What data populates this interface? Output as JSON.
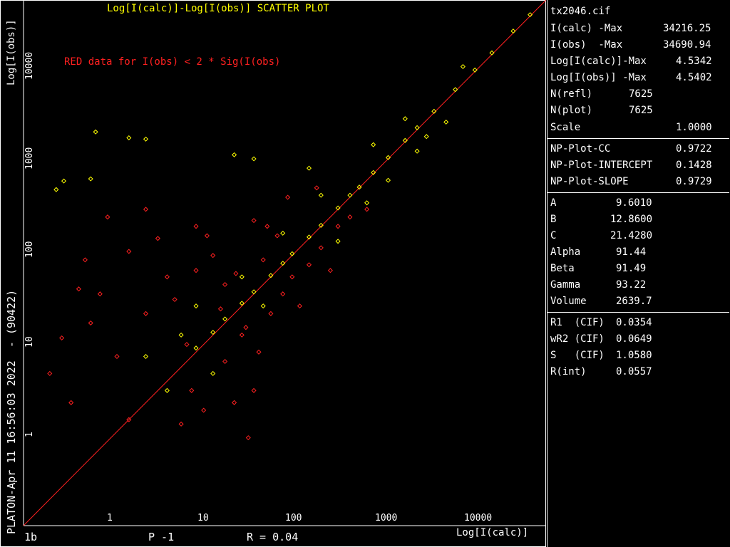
{
  "chart_data": {
    "type": "scatter",
    "title": "Log[I(calc)]-Log[I(obs)] SCATTER PLOT",
    "xlabel": "Log[I(calc)]",
    "ylabel": "Log[I(obs)]",
    "x_scale": "log",
    "y_scale": "log",
    "xlim": [
      0.16,
      44000
    ],
    "ylim": [
      0.16,
      44000
    ],
    "x_ticks": [
      "1",
      "10",
      "100",
      "1000",
      "10000"
    ],
    "y_ticks": [
      "1",
      "10",
      "100",
      "1000",
      "10000"
    ],
    "annotation": "RED data for I(obs) < 2 * Sig(I(obs)",
    "grid": false,
    "colors": {
      "strong": "#ffff00",
      "weak": "#ff2020",
      "line": "#ff2020"
    },
    "series": [
      {
        "color": "#ffff00",
        "points": [
          [
            0.35,
            480
          ],
          [
            0.42,
            590
          ],
          [
            0.9,
            1900
          ],
          [
            2.0,
            1650
          ],
          [
            3.0,
            1600
          ],
          [
            0.8,
            620
          ],
          [
            30000,
            31000
          ],
          [
            20000,
            21000
          ],
          [
            12000,
            12500
          ],
          [
            8000,
            8300
          ],
          [
            5000,
            5200
          ],
          [
            3000,
            3100
          ],
          [
            2000,
            2100
          ],
          [
            1500,
            1550
          ],
          [
            1000,
            1030
          ],
          [
            700,
            720
          ],
          [
            500,
            510
          ],
          [
            400,
            420
          ],
          [
            300,
            310
          ],
          [
            200,
            205
          ],
          [
            150,
            155
          ],
          [
            100,
            104
          ],
          [
            80,
            83
          ],
          [
            60,
            62
          ],
          [
            40,
            42
          ],
          [
            30,
            32
          ],
          [
            20,
            22
          ],
          [
            15,
            16
          ],
          [
            10,
            11
          ],
          [
            2000,
            1200
          ],
          [
            1000,
            600
          ],
          [
            600,
            350
          ],
          [
            1500,
            2600
          ],
          [
            2500,
            1700
          ],
          [
            700,
            1400
          ],
          [
            200,
            420
          ],
          [
            80,
            170
          ],
          [
            50,
            30
          ],
          [
            30,
            60
          ],
          [
            300,
            140
          ],
          [
            4000,
            2400
          ],
          [
            6000,
            9000
          ],
          [
            10,
            30
          ],
          [
            7,
            15
          ],
          [
            15,
            6
          ],
          [
            3,
            9
          ],
          [
            5,
            4
          ],
          [
            40,
            1000
          ],
          [
            25,
            1100
          ],
          [
            150,
            800
          ]
        ]
      },
      {
        "color": "#ff2020",
        "points": [
          [
            0.3,
            6
          ],
          [
            0.4,
            14
          ],
          [
            0.5,
            3
          ],
          [
            0.8,
            20
          ],
          [
            1.0,
            40
          ],
          [
            0.6,
            45
          ],
          [
            1.5,
            9
          ],
          [
            2,
            2
          ],
          [
            3,
            25
          ],
          [
            5,
            60
          ],
          [
            8,
            12
          ],
          [
            10,
            200
          ],
          [
            12,
            2.5
          ],
          [
            20,
            8
          ],
          [
            30,
            15
          ],
          [
            40,
            4
          ],
          [
            50,
            90
          ],
          [
            60,
            25
          ],
          [
            80,
            40
          ],
          [
            100,
            60
          ],
          [
            150,
            80
          ],
          [
            200,
            120
          ],
          [
            300,
            200
          ],
          [
            400,
            250
          ],
          [
            20,
            50
          ],
          [
            15,
            100
          ],
          [
            10,
            70
          ],
          [
            6,
            35
          ],
          [
            25,
            3
          ],
          [
            35,
            1.3
          ],
          [
            18,
            28
          ],
          [
            45,
            10
          ],
          [
            70,
            160
          ],
          [
            120,
            30
          ],
          [
            9,
            4
          ],
          [
            4,
            150
          ],
          [
            3,
            300
          ],
          [
            1.2,
            250
          ],
          [
            0.7,
            90
          ],
          [
            55,
            200
          ],
          [
            90,
            400
          ],
          [
            180,
            500
          ],
          [
            250,
            70
          ],
          [
            600,
            300
          ],
          [
            2,
            110
          ],
          [
            40,
            230
          ],
          [
            7,
            1.8
          ],
          [
            13,
            160
          ],
          [
            26,
            65
          ],
          [
            33,
            18
          ]
        ]
      }
    ],
    "reference_line": {
      "from": [
        0.16,
        0.16
      ],
      "to": [
        44000,
        44000
      ]
    }
  },
  "labels": {
    "vertical_stamp": "PLATON-Apr 11 16:56:03 2022  - (90422)",
    "bottom_left": "1b",
    "bottom_p": "P -1",
    "bottom_r": "R = 0.04"
  },
  "info": {
    "filename": "tx2046.cif",
    "rows_1": [
      {
        "k": "I(calc) -Max",
        "v": "34216.25"
      },
      {
        "k": "I(obs)  -Max",
        "v": "34690.94"
      },
      {
        "k": "Log[I(calc)]-Max",
        "v": "4.5342"
      },
      {
        "k": "Log[I(obs)] -Max",
        "v": "4.5402"
      },
      {
        "k": "N(refl)",
        "v": "7625"
      },
      {
        "k": "N(plot)",
        "v": "7625"
      },
      {
        "k": "Scale",
        "v": "1.0000"
      }
    ],
    "rows_2": [
      {
        "k": "NP-Plot-CC",
        "v": "0.9722"
      },
      {
        "k": "NP-Plot-INTERCEPT",
        "v": "0.1428"
      },
      {
        "k": "NP-Plot-SLOPE",
        "v": "0.9729"
      }
    ],
    "rows_3": [
      {
        "k": "A",
        "v": "9.6010"
      },
      {
        "k": "B",
        "v": "12.8600"
      },
      {
        "k": "C",
        "v": "21.4280"
      },
      {
        "k": "Alpha",
        "v": "91.44"
      },
      {
        "k": "Beta",
        "v": "91.49"
      },
      {
        "k": "Gamma",
        "v": "93.22"
      },
      {
        "k": "Volume",
        "v": "2639.7"
      }
    ],
    "rows_4": [
      {
        "k": "R1  (CIF)",
        "v": "0.0354"
      },
      {
        "k": "wR2 (CIF)",
        "v": "0.0649"
      },
      {
        "k": "S   (CIF)",
        "v": "1.0580"
      },
      {
        "k": "R(int)",
        "v": "0.0557"
      }
    ]
  }
}
